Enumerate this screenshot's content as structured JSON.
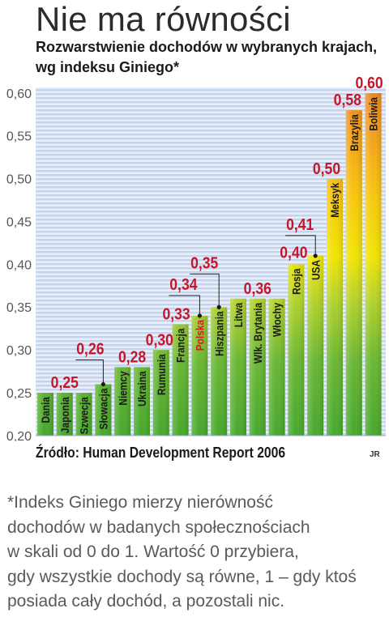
{
  "chart_data": {
    "type": "bar",
    "title": "Nie ma równości",
    "subtitle": [
      "Rozwarstwienie dochodów w wybranych krajach,",
      "wg indeksu Giniego*"
    ],
    "xlabel": "",
    "ylabel": "",
    "categories": [
      "Dania",
      "Japonia",
      "Szwecja",
      "Słowacja",
      "Niemcy",
      "Ukraina",
      "Rumunia",
      "Francja",
      "Polska",
      "Hiszpania",
      "Litwa",
      "Wlk. Brytania",
      "Włochy",
      "Rosja",
      "USA",
      "Meksyk",
      "Brazylia",
      "Boliwia"
    ],
    "values": [
      0.25,
      0.25,
      0.25,
      0.26,
      0.28,
      0.28,
      0.3,
      0.33,
      0.34,
      0.35,
      0.36,
      0.36,
      0.36,
      0.4,
      0.41,
      0.5,
      0.58,
      0.6
    ],
    "value_labels": [
      {
        "text": "0,25",
        "bars": [
          0,
          1,
          2
        ]
      },
      {
        "text": "0,26",
        "bars": [
          3
        ]
      },
      {
        "text": "0,28",
        "bars": [
          4,
          5
        ]
      },
      {
        "text": "0,30",
        "bars": [
          6
        ]
      },
      {
        "text": "0,33",
        "bars": [
          7
        ]
      },
      {
        "text": "0,34",
        "bars": [
          8
        ]
      },
      {
        "text": "0,35",
        "bars": [
          9
        ]
      },
      {
        "text": "0,36",
        "bars": [
          10,
          11,
          12
        ]
      },
      {
        "text": "0,40",
        "bars": [
          13
        ]
      },
      {
        "text": "0,41",
        "bars": [
          14
        ]
      },
      {
        "text": "0,50",
        "bars": [
          15
        ]
      },
      {
        "text": "0,58",
        "bars": [
          16
        ]
      },
      {
        "text": "0,60",
        "bars": [
          17
        ]
      }
    ],
    "ylim": [
      0.2,
      0.6
    ],
    "y_ticks": [
      0.2,
      0.25,
      0.3,
      0.35,
      0.4,
      0.45,
      0.5,
      0.55,
      0.6
    ],
    "y_tick_labels": [
      "0,20",
      "0,25",
      "0,30",
      "0,35",
      "0,40",
      "0,45",
      "0,50",
      "0,55",
      "0,60"
    ],
    "grid": false,
    "highlight_index": 8,
    "colors": {
      "bar_gradient": [
        "#47a72d",
        "#6bb733",
        "#b6d32b",
        "#f1e504",
        "#f7c70d",
        "#f4a418",
        "#ee881c"
      ],
      "stripes": [
        "#c4d3ee",
        "#e9eef8"
      ],
      "value_label": "#c4172c",
      "bar_label": "#1b1b1b",
      "highlight_label": "#d8182a"
    }
  },
  "source": "Źródło: Human Development Report 2006",
  "credit": "JR",
  "footnote": [
    "*Indeks Giniego mierzy nierówność",
    "dochodów w badanych społecznościach",
    "w skali od 0 do 1. Wartość 0 przybiera,",
    "gdy wszystkie dochody są równe, 1 – gdy ktoś",
    "posiada cały dochód, a pozostali nic."
  ]
}
